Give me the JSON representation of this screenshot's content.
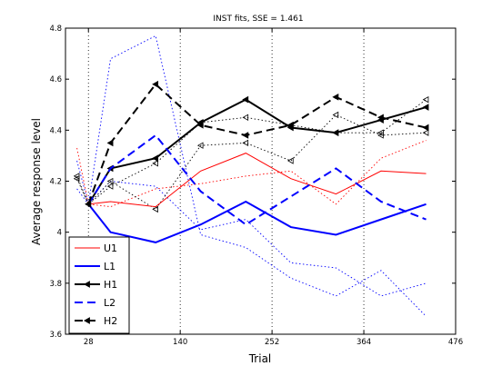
{
  "chart_data": {
    "type": "line",
    "title": "INST fits, SSE = 1.461",
    "xlabel": "Trial",
    "ylabel": "Average response level",
    "xlim": [
      0,
      476
    ],
    "ylim": [
      3.6,
      4.8
    ],
    "xticks": [
      28,
      140,
      252,
      364,
      476
    ],
    "yticks": [
      3.6,
      3.8,
      4.0,
      4.2,
      4.4,
      4.6,
      4.8
    ],
    "xgrid": true,
    "ygrid": false,
    "legend_position": "bottom-left",
    "colors": {
      "red": "#ff0000",
      "blue": "#0000ff",
      "black": "#000000"
    },
    "series": [
      {
        "name": "U1",
        "color": "#ff0000",
        "style": "solid",
        "width": 1,
        "marker": "none",
        "x": [
          28,
          55,
          110,
          165,
          220,
          275,
          330,
          385,
          440
        ],
        "y": [
          4.11,
          4.12,
          4.1,
          4.24,
          4.31,
          4.21,
          4.15,
          4.24,
          4.23
        ]
      },
      {
        "name": "L1",
        "color": "#0000ff",
        "style": "solid",
        "width": 2,
        "marker": "none",
        "x": [
          28,
          55,
          110,
          165,
          220,
          275,
          330,
          385,
          440
        ],
        "y": [
          4.11,
          4.0,
          3.96,
          4.03,
          4.12,
          4.02,
          3.99,
          4.05,
          4.11
        ]
      },
      {
        "name": "H1",
        "color": "#000000",
        "style": "solid",
        "width": 2,
        "marker": "tri-left",
        "x": [
          28,
          55,
          110,
          165,
          220,
          275,
          330,
          385,
          440
        ],
        "y": [
          4.11,
          4.25,
          4.29,
          4.43,
          4.52,
          4.41,
          4.39,
          4.44,
          4.49
        ]
      },
      {
        "name": "L2",
        "color": "#0000ff",
        "style": "dashed",
        "width": 2,
        "marker": "none",
        "x": [
          28,
          55,
          110,
          165,
          220,
          275,
          330,
          385,
          440
        ],
        "y": [
          4.11,
          4.25,
          4.38,
          4.16,
          4.03,
          4.14,
          4.25,
          4.12,
          4.05
        ]
      },
      {
        "name": "H2",
        "color": "#000000",
        "style": "dashed",
        "width": 2,
        "marker": "tri-left",
        "x": [
          28,
          55,
          110,
          165,
          220,
          275,
          330,
          385,
          440
        ],
        "y": [
          4.11,
          4.35,
          4.58,
          4.42,
          4.38,
          4.42,
          4.53,
          4.45,
          4.41
        ]
      }
    ],
    "observed": [
      {
        "color": "#ff0000",
        "style": "dotted",
        "marker": "none",
        "x": [
          14,
          28,
          55,
          110,
          165,
          220,
          275,
          330,
          385,
          440
        ],
        "y": [
          4.33,
          4.11,
          4.1,
          4.17,
          4.19,
          4.22,
          4.24,
          4.11,
          4.29,
          4.36
        ]
      },
      {
        "color": "#0000ff",
        "style": "dotted",
        "marker": "none",
        "x": [
          14,
          28,
          55,
          110,
          165,
          220,
          275,
          330,
          385,
          440
        ],
        "y": [
          4.28,
          4.11,
          4.2,
          4.18,
          4.01,
          4.05,
          3.88,
          3.86,
          3.75,
          3.8
        ]
      },
      {
        "color": "#0000ff",
        "style": "dotted",
        "marker": "none",
        "x": [
          14,
          28,
          55,
          110,
          165,
          220,
          275,
          330,
          385,
          440
        ],
        "y": [
          4.17,
          4.11,
          4.68,
          4.77,
          3.99,
          3.94,
          3.82,
          3.75,
          3.85,
          3.67
        ]
      },
      {
        "color": "#000000",
        "style": "dotted",
        "marker": "tri-left",
        "x": [
          14,
          28,
          55,
          110,
          165,
          220,
          275,
          330,
          385,
          440
        ],
        "y": [
          4.22,
          4.11,
          4.2,
          4.09,
          4.34,
          4.35,
          4.28,
          4.46,
          4.38,
          4.39
        ]
      },
      {
        "color": "#000000",
        "style": "dotted",
        "marker": "tri-left",
        "x": [
          14,
          28,
          55,
          110,
          165,
          220,
          275,
          330,
          385,
          440
        ],
        "y": [
          4.21,
          4.11,
          4.18,
          4.27,
          4.43,
          4.45,
          4.42,
          4.39,
          4.39,
          4.52
        ]
      }
    ]
  }
}
